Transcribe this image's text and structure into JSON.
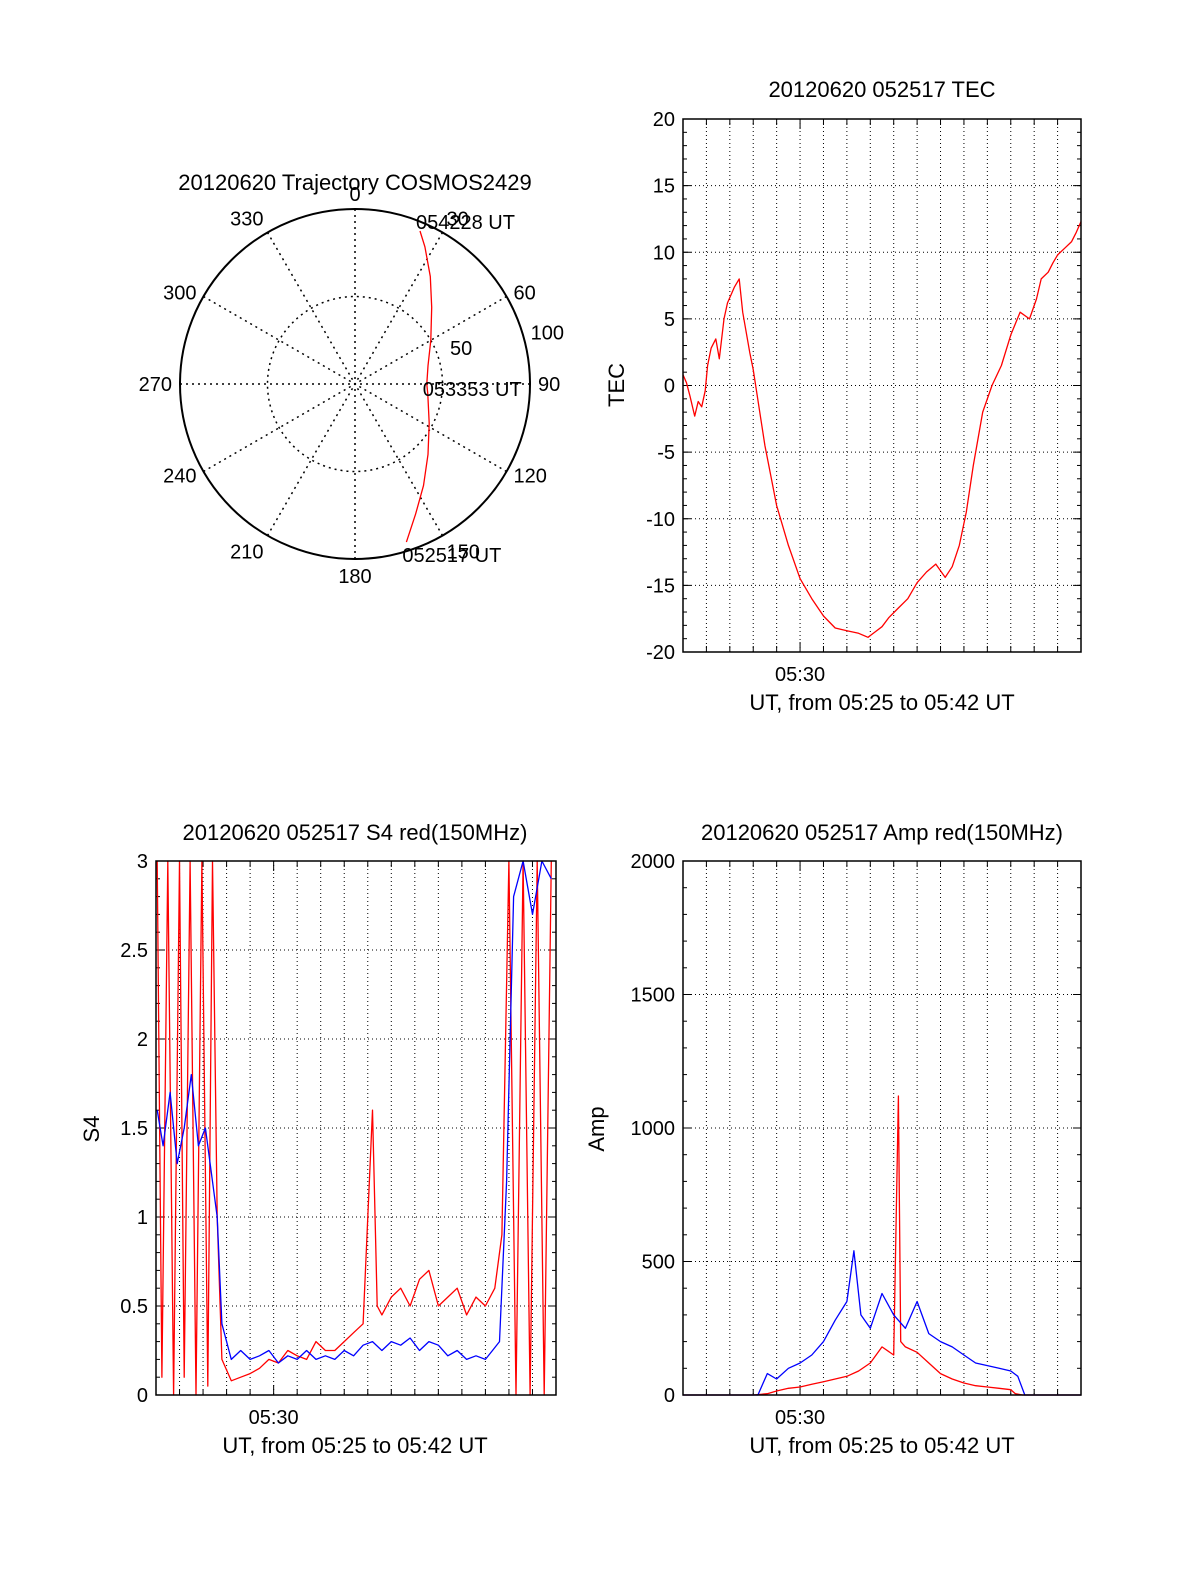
{
  "colors": {
    "red": "#ff0000",
    "blue": "#0000ff",
    "axis": "#000000",
    "grid": "#000000"
  },
  "chart_data": [
    {
      "type": "polar",
      "title": "20120620 Trajectory COSMOS2429",
      "angle_tick_labels": [
        "0",
        "30",
        "60",
        "90",
        "120",
        "150",
        "180",
        "210",
        "240",
        "270",
        "300",
        "330"
      ],
      "radius_tick_labels": [
        "50",
        "100"
      ],
      "rlim": [
        0,
        100
      ],
      "grid": true,
      "series": [
        {
          "color": "#ff0000",
          "points": [
            {
              "az": 162,
              "r": 95
            },
            {
              "az": 155,
              "r": 82
            },
            {
              "az": 146,
              "r": 70
            },
            {
              "az": 134,
              "r": 58
            },
            {
              "az": 118,
              "r": 48
            },
            {
              "az": 98,
              "r": 42
            },
            {
              "az": 90,
              "r": 41
            },
            {
              "az": 76,
              "r": 43
            },
            {
              "az": 60,
              "r": 50
            },
            {
              "az": 45,
              "r": 62
            },
            {
              "az": 35,
              "r": 75
            },
            {
              "az": 27,
              "r": 88
            },
            {
              "az": 23,
              "r": 95
            }
          ]
        }
      ],
      "annotations": [
        {
          "text": "054228 UT",
          "az": 23,
          "r": 95
        },
        {
          "text": "053353 UT",
          "az": 90,
          "r": 41
        },
        {
          "text": "052517 UT",
          "az": 162,
          "r": 95
        }
      ]
    },
    {
      "type": "line",
      "title": "20120620 052517 TEC",
      "xlabel": "UT, from 05:25 to 05:42 UT",
      "ylabel": "TEC",
      "x_tick_labels": [
        "05:30"
      ],
      "y_tick_labels": [
        "-20",
        "-15",
        "-10",
        "-5",
        "0",
        "5",
        "10",
        "15",
        "20"
      ],
      "xlim": [
        0,
        17
      ],
      "ylim": [
        -20,
        20
      ],
      "grid": true,
      "series": [
        {
          "color": "#ff0000",
          "x": [
            0,
            0.15,
            0.3,
            0.5,
            0.65,
            0.8,
            0.95,
            1.05,
            1.2,
            1.4,
            1.55,
            1.75,
            1.9,
            2.05,
            2.2,
            2.4,
            2.55,
            2.7,
            2.85,
            3.0,
            3.5,
            4.0,
            4.5,
            5.0,
            5.5,
            6.0,
            6.5,
            7.0,
            7.5,
            7.9,
            8.2,
            8.5,
            8.8,
            9.2,
            9.6,
            10.0,
            10.4,
            10.8,
            11.2,
            11.5,
            11.8,
            12.1,
            12.4,
            12.8,
            13.2,
            13.6,
            14.0,
            14.4,
            14.8,
            15.1,
            15.3,
            15.6,
            15.8,
            16.0,
            16.3,
            16.6,
            16.8,
            17.0
          ],
          "y": [
            0.8,
            0.2,
            -0.8,
            -2.3,
            -1.2,
            -1.6,
            -0.4,
            1.5,
            2.8,
            3.5,
            2.0,
            5.0,
            6.2,
            6.8,
            7.4,
            8.0,
            5.5,
            4.0,
            2.5,
            1.2,
            -4.5,
            -9.0,
            -12.0,
            -14.5,
            -16.0,
            -17.3,
            -18.2,
            -18.4,
            -18.6,
            -18.9,
            -18.5,
            -18.1,
            -17.4,
            -16.7,
            -16.0,
            -14.8,
            -14.0,
            -13.4,
            -14.4,
            -13.6,
            -12.0,
            -9.5,
            -6.0,
            -2.0,
            0.0,
            1.5,
            3.8,
            5.5,
            5.0,
            6.5,
            8.0,
            8.5,
            9.2,
            9.8,
            10.3,
            10.8,
            11.5,
            12.3
          ]
        }
      ]
    },
    {
      "type": "line",
      "title": "20120620 052517 S4 red(150MHz)",
      "xlabel": "UT, from 05:25 to 05:42 UT",
      "ylabel": "S4",
      "x_tick_labels": [
        "05:30"
      ],
      "y_tick_labels": [
        "0",
        "0.5",
        "1",
        "1.5",
        "2",
        "2.5",
        "3"
      ],
      "xlim": [
        0,
        17
      ],
      "ylim": [
        0,
        3
      ],
      "grid": true,
      "series": [
        {
          "color": "#ff0000",
          "x": [
            0.05,
            0.25,
            0.5,
            0.75,
            1.0,
            1.2,
            1.45,
            1.7,
            1.95,
            2.2,
            2.4,
            2.6,
            2.8,
            3.2,
            3.6,
            4.0,
            4.4,
            4.8,
            5.2,
            5.6,
            6.0,
            6.4,
            6.8,
            7.2,
            7.6,
            8.0,
            8.4,
            8.8,
            9.2,
            9.4,
            9.6,
            10.0,
            10.4,
            10.8,
            11.2,
            11.6,
            12.0,
            12.4,
            12.8,
            13.2,
            13.6,
            14.0,
            14.4,
            14.7,
            15.0,
            15.3,
            15.6,
            15.9,
            16.2,
            16.5,
            16.8
          ],
          "y": [
            3.0,
            0.1,
            3.0,
            0.0,
            3.0,
            0.1,
            3.0,
            0.0,
            3.0,
            0.05,
            3.0,
            1.0,
            0.2,
            0.08,
            0.1,
            0.12,
            0.15,
            0.2,
            0.18,
            0.25,
            0.22,
            0.2,
            0.3,
            0.25,
            0.25,
            0.3,
            0.35,
            0.4,
            1.6,
            0.5,
            0.45,
            0.55,
            0.6,
            0.5,
            0.65,
            0.7,
            0.5,
            0.55,
            0.6,
            0.45,
            0.55,
            0.5,
            0.6,
            0.9,
            3.0,
            0.0,
            3.0,
            0.0,
            3.0,
            0.0,
            3.0
          ]
        },
        {
          "color": "#0000ff",
          "x": [
            0.05,
            0.3,
            0.6,
            0.9,
            1.2,
            1.5,
            1.8,
            2.1,
            2.4,
            2.6,
            2.8,
            3.2,
            3.6,
            4.0,
            4.4,
            4.8,
            5.2,
            5.6,
            6.0,
            6.4,
            6.8,
            7.2,
            7.6,
            8.0,
            8.4,
            8.8,
            9.2,
            9.6,
            10.0,
            10.4,
            10.8,
            11.2,
            11.6,
            12.0,
            12.4,
            12.8,
            13.2,
            13.6,
            14.0,
            14.3,
            14.6,
            14.9,
            15.2,
            15.6,
            16.0,
            16.4,
            16.8
          ],
          "y": [
            1.6,
            1.4,
            1.7,
            1.3,
            1.5,
            1.8,
            1.4,
            1.5,
            1.2,
            1.0,
            0.4,
            0.2,
            0.25,
            0.2,
            0.22,
            0.25,
            0.18,
            0.22,
            0.2,
            0.25,
            0.2,
            0.22,
            0.2,
            0.25,
            0.22,
            0.28,
            0.3,
            0.25,
            0.3,
            0.28,
            0.32,
            0.25,
            0.3,
            0.28,
            0.22,
            0.25,
            0.2,
            0.22,
            0.2,
            0.25,
            0.3,
            1.2,
            2.8,
            3.0,
            2.7,
            3.0,
            2.9
          ]
        }
      ]
    },
    {
      "type": "line",
      "title": "20120620 052517 Amp red(150MHz)",
      "xlabel": "UT, from 05:25 to 05:42 UT",
      "ylabel": "Amp",
      "x_tick_labels": [
        "05:30"
      ],
      "y_tick_labels": [
        "0",
        "500",
        "1000",
        "1500",
        "2000"
      ],
      "xlim": [
        0,
        17
      ],
      "ylim": [
        0,
        2000
      ],
      "grid": true,
      "series": [
        {
          "color": "#ff0000",
          "x": [
            0,
            2.0,
            3.0,
            3.6,
            4.0,
            4.5,
            5.0,
            5.5,
            6.0,
            6.5,
            7.0,
            7.5,
            8.0,
            8.5,
            9.0,
            9.2,
            9.3,
            9.5,
            10.0,
            10.5,
            11.0,
            11.5,
            12.0,
            12.5,
            13.0,
            13.5,
            14.0,
            14.2,
            14.5,
            17.0
          ],
          "y": [
            0,
            0,
            0,
            5,
            15,
            25,
            30,
            40,
            50,
            60,
            70,
            90,
            120,
            180,
            150,
            1120,
            200,
            180,
            160,
            120,
            80,
            60,
            45,
            35,
            30,
            25,
            20,
            5,
            0,
            0
          ]
        },
        {
          "color": "#0000ff",
          "x": [
            0,
            2.0,
            3.2,
            3.6,
            4.0,
            4.5,
            5.0,
            5.5,
            6.0,
            6.5,
            7.0,
            7.3,
            7.6,
            8.0,
            8.5,
            9.0,
            9.5,
            10.0,
            10.5,
            11.0,
            11.5,
            12.0,
            12.5,
            13.0,
            13.5,
            14.0,
            14.3,
            14.6,
            17.0
          ],
          "y": [
            0,
            0,
            0,
            80,
            60,
            100,
            120,
            150,
            200,
            280,
            350,
            540,
            300,
            250,
            380,
            300,
            250,
            350,
            230,
            200,
            180,
            150,
            120,
            110,
            100,
            90,
            70,
            0,
            0
          ]
        }
      ]
    }
  ]
}
